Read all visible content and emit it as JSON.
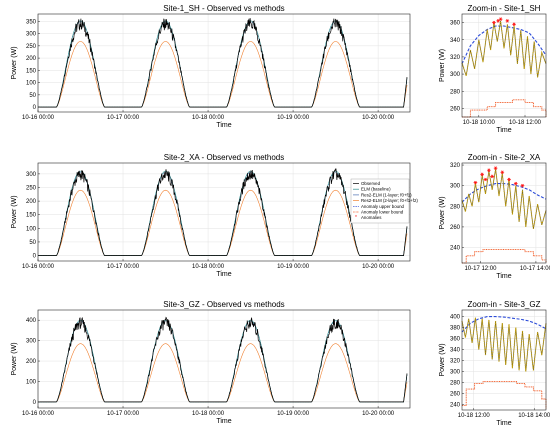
{
  "colors": {
    "observed": "#000000",
    "elm": "#2b8a8a",
    "res1": "#4a6fb0",
    "res2": "#f08030",
    "upper": "#2b4bd8",
    "lower": "#f05018",
    "anomaly": "#ff1010",
    "zoom_observed": "#c8a200"
  },
  "legend": {
    "entries": [
      "Observed",
      "ELM (baseline)",
      "Res2-ELM (1-layer; f0+f1)",
      "Res2-ELM (2-layer; f0+f1+f2)",
      "Anomaly upper bound",
      "Anomaly lower bound",
      "Anomalies"
    ]
  },
  "chart_data": [
    {
      "type": "line",
      "title": "Site-1_SH - Observed vs methods",
      "xlabel": "Time",
      "ylabel": "Power (W)",
      "xlim_hours": [
        0,
        105
      ],
      "xticks": [
        {
          "h": 0,
          "label": "10-16 00:00"
        },
        {
          "h": 24,
          "label": "10-17 00:00"
        },
        {
          "h": 48,
          "label": "10-18 00:00"
        },
        {
          "h": 72,
          "label": "10-19 00:00"
        },
        {
          "h": 96,
          "label": "10-20 00:00"
        }
      ],
      "ylim": [
        -20,
        380
      ],
      "yticks": [
        0,
        50,
        100,
        150,
        200,
        250,
        300,
        350
      ],
      "grid": true,
      "peaks_hours": [
        12,
        36,
        60,
        84
      ],
      "series": [
        {
          "key": "observed",
          "peak": 365
        },
        {
          "key": "elm",
          "peak": 352
        },
        {
          "key": "res1",
          "peak": 348
        },
        {
          "key": "res2",
          "peak": 268
        }
      ]
    },
    {
      "type": "line",
      "title": "Site-2_XA - Observed vs methods",
      "xlabel": "Time",
      "ylabel": "Power (W)",
      "xlim_hours": [
        0,
        105
      ],
      "xticks": [
        {
          "h": 0,
          "label": "10-16 00:00"
        },
        {
          "h": 24,
          "label": "10-17 00:00"
        },
        {
          "h": 48,
          "label": "10-18 00:00"
        },
        {
          "h": 72,
          "label": "10-19 00:00"
        },
        {
          "h": 96,
          "label": "10-20 00:00"
        }
      ],
      "ylim": [
        -20,
        340
      ],
      "yticks": [
        0,
        50,
        100,
        150,
        200,
        250,
        300
      ],
      "grid": true,
      "legend_position": "right",
      "peaks_hours": [
        12,
        36,
        60,
        84
      ],
      "series": [
        {
          "key": "observed",
          "peak": 320
        },
        {
          "key": "elm",
          "peak": 310
        },
        {
          "key": "res1",
          "peak": 305
        },
        {
          "key": "res2",
          "peak": 240
        }
      ]
    },
    {
      "type": "line",
      "title": "Site-3_GZ - Observed vs methods",
      "xlabel": "Time",
      "ylabel": "Power (W)",
      "xlim_hours": [
        0,
        105
      ],
      "xticks": [
        {
          "h": 0,
          "label": "10-16 00:00"
        },
        {
          "h": 24,
          "label": "10-17 00:00"
        },
        {
          "h": 48,
          "label": "10-18 00:00"
        },
        {
          "h": 72,
          "label": "10-19 00:00"
        },
        {
          "h": 96,
          "label": "10-20 00:00"
        }
      ],
      "ylim": [
        -30,
        450
      ],
      "yticks": [
        0,
        100,
        200,
        300,
        400
      ],
      "grid": true,
      "peaks_hours": [
        12,
        36,
        60,
        84
      ],
      "series": [
        {
          "key": "observed",
          "peak": 415
        },
        {
          "key": "elm",
          "peak": 400
        },
        {
          "key": "res1",
          "peak": 395
        },
        {
          "key": "res2",
          "peak": 285
        }
      ]
    },
    {
      "type": "line",
      "title": "Zoom-in - Site-1_SH",
      "xlabel": "Time",
      "ylabel": "Power (W)",
      "xlim_hours": [
        8,
        18
      ],
      "xticks": [
        {
          "h": 10,
          "label": "10-18 10:00"
        },
        {
          "h": 15.5,
          "label": "10-18 12:00"
        }
      ],
      "ylim": [
        250,
        370
      ],
      "yticks": [
        260,
        280,
        300,
        320,
        340,
        360
      ],
      "grid": true,
      "upper_bound": [
        {
          "h": 8,
          "v": 312
        },
        {
          "h": 9,
          "v": 333
        },
        {
          "h": 10,
          "v": 345
        },
        {
          "h": 11,
          "v": 352
        },
        {
          "h": 12,
          "v": 356
        },
        {
          "h": 13,
          "v": 356
        },
        {
          "h": 14,
          "v": 354
        },
        {
          "h": 15,
          "v": 352
        },
        {
          "h": 16,
          "v": 348
        },
        {
          "h": 17,
          "v": 336
        },
        {
          "h": 18,
          "v": 322
        }
      ],
      "lower_bound": [
        {
          "h": 8,
          "v": 250
        },
        {
          "h": 9,
          "v": 258
        },
        {
          "h": 11,
          "v": 262
        },
        {
          "h": 12,
          "v": 267
        },
        {
          "h": 14,
          "v": 270
        },
        {
          "h": 15.5,
          "v": 267
        },
        {
          "h": 16.5,
          "v": 262
        },
        {
          "h": 17.5,
          "v": 258
        },
        {
          "h": 18,
          "v": 250
        }
      ],
      "observed": [
        {
          "h": 8,
          "v": 313
        },
        {
          "h": 8.5,
          "v": 298
        },
        {
          "h": 9,
          "v": 328
        },
        {
          "h": 9.5,
          "v": 306
        },
        {
          "h": 10,
          "v": 340
        },
        {
          "h": 10.5,
          "v": 314
        },
        {
          "h": 11,
          "v": 352
        },
        {
          "h": 11.4,
          "v": 328
        },
        {
          "h": 11.8,
          "v": 360
        },
        {
          "h": 12.2,
          "v": 338
        },
        {
          "h": 12.6,
          "v": 362
        },
        {
          "h": 13,
          "v": 330
        },
        {
          "h": 13.4,
          "v": 358
        },
        {
          "h": 13.8,
          "v": 322
        },
        {
          "h": 14.2,
          "v": 356
        },
        {
          "h": 14.6,
          "v": 312
        },
        {
          "h": 15,
          "v": 351
        },
        {
          "h": 15.4,
          "v": 306
        },
        {
          "h": 15.8,
          "v": 344
        },
        {
          "h": 16.2,
          "v": 300
        },
        {
          "h": 16.6,
          "v": 338
        },
        {
          "h": 17,
          "v": 296
        },
        {
          "h": 17.5,
          "v": 325
        },
        {
          "h": 18,
          "v": 312
        }
      ],
      "anomalies": [
        {
          "h": 11.8,
          "v": 360
        },
        {
          "h": 12.3,
          "v": 362
        },
        {
          "h": 12.6,
          "v": 364
        },
        {
          "h": 13.4,
          "v": 362
        },
        {
          "h": 14.2,
          "v": 358
        }
      ]
    },
    {
      "type": "line",
      "title": "Zoom-in - Site-2_XA",
      "xlabel": "Time",
      "ylabel": "Power (W)",
      "xlim_hours": [
        8,
        18
      ],
      "xticks": [
        {
          "h": 10.2,
          "label": "10-17 12:00"
        },
        {
          "h": 16.8,
          "label": "10-17 14:00"
        }
      ],
      "ylim": [
        225,
        322
      ],
      "yticks": [
        240,
        260,
        280,
        300,
        320
      ],
      "grid": true,
      "upper_bound": [
        {
          "h": 8,
          "v": 284
        },
        {
          "h": 9,
          "v": 292
        },
        {
          "h": 10,
          "v": 297
        },
        {
          "h": 11,
          "v": 300
        },
        {
          "h": 12,
          "v": 302
        },
        {
          "h": 13,
          "v": 302
        },
        {
          "h": 14,
          "v": 301
        },
        {
          "h": 15,
          "v": 299
        },
        {
          "h": 16,
          "v": 296
        },
        {
          "h": 17,
          "v": 291
        },
        {
          "h": 18,
          "v": 287
        }
      ],
      "lower_bound": [
        {
          "h": 8,
          "v": 225
        },
        {
          "h": 8.5,
          "v": 232
        },
        {
          "h": 9.5,
          "v": 236
        },
        {
          "h": 10.5,
          "v": 238
        },
        {
          "h": 14,
          "v": 238
        },
        {
          "h": 15.5,
          "v": 236
        },
        {
          "h": 16.5,
          "v": 232
        },
        {
          "h": 17.5,
          "v": 228
        },
        {
          "h": 18,
          "v": 225
        }
      ],
      "observed": [
        {
          "h": 8,
          "v": 286
        },
        {
          "h": 8.4,
          "v": 275
        },
        {
          "h": 8.8,
          "v": 292
        },
        {
          "h": 9.2,
          "v": 280
        },
        {
          "h": 9.6,
          "v": 302
        },
        {
          "h": 10,
          "v": 284
        },
        {
          "h": 10.4,
          "v": 310
        },
        {
          "h": 10.8,
          "v": 292
        },
        {
          "h": 11.2,
          "v": 314
        },
        {
          "h": 11.6,
          "v": 296
        },
        {
          "h": 12,
          "v": 316
        },
        {
          "h": 12.4,
          "v": 290
        },
        {
          "h": 12.8,
          "v": 312
        },
        {
          "h": 13.2,
          "v": 280
        },
        {
          "h": 13.6,
          "v": 306
        },
        {
          "h": 14,
          "v": 272
        },
        {
          "h": 14.4,
          "v": 300
        },
        {
          "h": 14.8,
          "v": 265
        },
        {
          "h": 15.2,
          "v": 296
        },
        {
          "h": 15.6,
          "v": 260
        },
        {
          "h": 16,
          "v": 290
        },
        {
          "h": 16.5,
          "v": 258
        },
        {
          "h": 17,
          "v": 282
        },
        {
          "h": 17.5,
          "v": 262
        },
        {
          "h": 18,
          "v": 276
        }
      ],
      "anomalies": [
        {
          "h": 9.6,
          "v": 303
        },
        {
          "h": 10.4,
          "v": 311
        },
        {
          "h": 10.8,
          "v": 306
        },
        {
          "h": 11.2,
          "v": 315
        },
        {
          "h": 11.6,
          "v": 309
        },
        {
          "h": 12,
          "v": 317
        },
        {
          "h": 12.8,
          "v": 313
        },
        {
          "h": 13.6,
          "v": 306
        },
        {
          "h": 14.4,
          "v": 302
        },
        {
          "h": 15.2,
          "v": 300
        }
      ]
    },
    {
      "type": "line",
      "title": "Zoom-in - Site-3_GZ",
      "xlabel": "Time",
      "ylabel": "Power (W)",
      "xlim_hours": [
        8,
        18
      ],
      "xticks": [
        {
          "h": 9.4,
          "label": "10-18 12:00"
        },
        {
          "h": 16.6,
          "label": "10-18 14:00"
        }
      ],
      "ylim": [
        230,
        412
      ],
      "yticks": [
        240,
        260,
        280,
        300,
        320,
        340,
        360,
        380,
        400
      ],
      "grid": true,
      "upper_bound": [
        {
          "h": 8,
          "v": 372
        },
        {
          "h": 9,
          "v": 388
        },
        {
          "h": 10,
          "v": 396
        },
        {
          "h": 11,
          "v": 400
        },
        {
          "h": 12,
          "v": 400
        },
        {
          "h": 13,
          "v": 399
        },
        {
          "h": 14,
          "v": 397
        },
        {
          "h": 15,
          "v": 395
        },
        {
          "h": 16,
          "v": 392
        },
        {
          "h": 17,
          "v": 386
        },
        {
          "h": 18,
          "v": 378
        }
      ],
      "lower_bound": [
        {
          "h": 8,
          "v": 238
        },
        {
          "h": 8.5,
          "v": 268
        },
        {
          "h": 9.5,
          "v": 278
        },
        {
          "h": 10.5,
          "v": 282
        },
        {
          "h": 13.5,
          "v": 282
        },
        {
          "h": 14.5,
          "v": 278
        },
        {
          "h": 15.5,
          "v": 272
        },
        {
          "h": 16.5,
          "v": 265
        },
        {
          "h": 17.5,
          "v": 250
        },
        {
          "h": 18,
          "v": 232
        }
      ],
      "observed": [
        {
          "h": 8,
          "v": 392
        },
        {
          "h": 8.4,
          "v": 362
        },
        {
          "h": 8.8,
          "v": 396
        },
        {
          "h": 9.2,
          "v": 352
        },
        {
          "h": 9.6,
          "v": 398
        },
        {
          "h": 10,
          "v": 340
        },
        {
          "h": 10.4,
          "v": 396
        },
        {
          "h": 10.8,
          "v": 330
        },
        {
          "h": 11.2,
          "v": 394
        },
        {
          "h": 11.6,
          "v": 322
        },
        {
          "h": 12,
          "v": 392
        },
        {
          "h": 12.4,
          "v": 318
        },
        {
          "h": 12.8,
          "v": 388
        },
        {
          "h": 13.2,
          "v": 312
        },
        {
          "h": 13.6,
          "v": 386
        },
        {
          "h": 14,
          "v": 306
        },
        {
          "h": 14.4,
          "v": 380
        },
        {
          "h": 14.8,
          "v": 302
        },
        {
          "h": 15.2,
          "v": 374
        },
        {
          "h": 15.6,
          "v": 300
        },
        {
          "h": 16,
          "v": 368
        },
        {
          "h": 16.5,
          "v": 302
        },
        {
          "h": 17,
          "v": 372
        },
        {
          "h": 17.5,
          "v": 330
        },
        {
          "h": 18,
          "v": 388
        }
      ],
      "anomalies": []
    }
  ]
}
